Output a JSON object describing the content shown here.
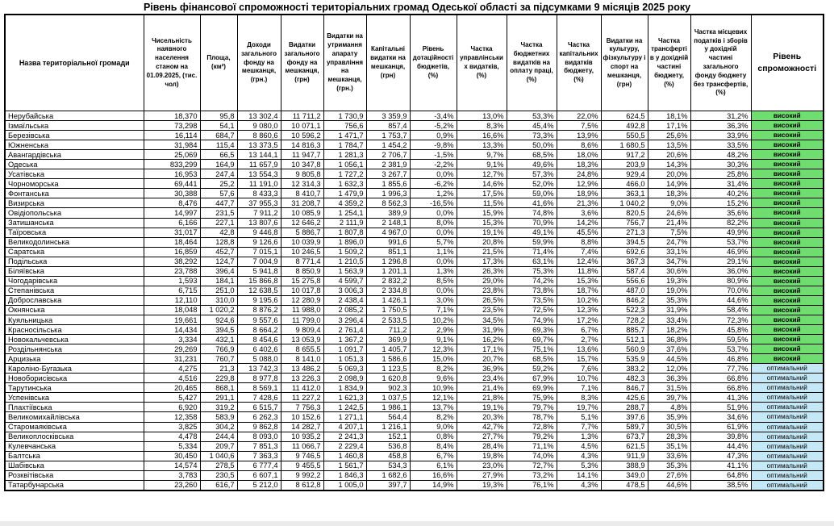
{
  "title": "Рівень фінансової спроможності територіальних громад Одеської області за підсумками 9 місяців 2025 року",
  "table": {
    "columns": [
      "Назва територіальної громади",
      "Чисельність наявного населення станом на 01.09.2025, (тис. чол)",
      "Площа, (км²)",
      "Доходи загального фонду на мешканця, (грн.)",
      "Видатки загального фонду на мешканця, (грн)",
      "Видатки на утримання апарату управління на мешканця, (грн.)",
      "Капітальні видатки на мешканця, (грн)",
      "Рівень дотаційності бюджетів, (%)",
      "Частка управлінських видатків, (%)",
      "Частка бюджетних видатків на оплату праці, (%)",
      "Частка капітальних видатків бюджету, (%)",
      "Видатки на культуру, фізкультуру і спорт на мешканця, (грн)",
      "Частка трансфертів у дохідній частині бюджету, (%)",
      "Частка місцевих податків і зборів у дохідній частині загального фонду бюджету без трансфертів, (%)",
      "Рівень спроможності"
    ],
    "rows": [
      [
        "Нерубайська",
        "18,370",
        "95,8",
        "13 302,4",
        "11 711,2",
        "1 730,9",
        "3 359,9",
        "-3,4%",
        "13,0%",
        "53,3%",
        "22,0%",
        "624,5",
        "18,1%",
        "31,2%",
        "високий"
      ],
      [
        "Ізмаїльська",
        "73,298",
        "54,1",
        "9 080,0",
        "10 071,1",
        "756,6",
        "857,4",
        "-5,2%",
        "8,3%",
        "45,4%",
        "7,5%",
        "492,8",
        "17,1%",
        "36,3%",
        "високий"
      ],
      [
        "Березівська",
        "16,114",
        "684,7",
        "8 860,6",
        "10 596,2",
        "1 471,7",
        "1 753,7",
        "0,9%",
        "16,6%",
        "73,3%",
        "13,9%",
        "550,5",
        "25,6%",
        "33,9%",
        "високий"
      ],
      [
        "Южненська",
        "31,984",
        "115,4",
        "13 373,5",
        "14 816,3",
        "1 784,7",
        "1 454,2",
        "-9,8%",
        "13,3%",
        "50,0%",
        "8,6%",
        "1 680,5",
        "13,5%",
        "33,5%",
        "високий"
      ],
      [
        "Авангардівська",
        "25,069",
        "66,5",
        "13 144,1",
        "11 947,7",
        "1 281,3",
        "2 706,7",
        "-1,5%",
        "9,7%",
        "68,5%",
        "18,0%",
        "917,2",
        "20,6%",
        "48,2%",
        "високий"
      ],
      [
        "Одеська",
        "833,299",
        "164,9",
        "11 657,9",
        "10 347,8",
        "1 056,1",
        "2 381,9",
        "-2,2%",
        "9,1%",
        "49,6%",
        "18,3%",
        "203,9",
        "14,3%",
        "30,3%",
        "високий"
      ],
      [
        "Усатівська",
        "16,953",
        "247,4",
        "13 554,3",
        "9 805,8",
        "1 727,2",
        "3 267,7",
        "0,0%",
        "12,7%",
        "57,3%",
        "24,8%",
        "929,4",
        "20,0%",
        "25,8%",
        "високий"
      ],
      [
        "Чорноморська",
        "69,441",
        "25,2",
        "11 191,0",
        "12 314,3",
        "1 632,3",
        "1 855,6",
        "-6,2%",
        "14,6%",
        "52,0%",
        "12,9%",
        "466,0",
        "14,9%",
        "31,4%",
        "високий"
      ],
      [
        "Фонтанська",
        "30,388",
        "57,6",
        "8 433,3",
        "8 410,7",
        "1 479,9",
        "1 996,3",
        "1,2%",
        "17,5%",
        "59,0%",
        "18,9%",
        "363,1",
        "18,3%",
        "40,2%",
        "високий"
      ],
      [
        "Визирська",
        "8,476",
        "447,7",
        "37 955,3",
        "31 208,7",
        "4 359,2",
        "8 562,3",
        "-16,5%",
        "11,5%",
        "41,6%",
        "21,3%",
        "1 040,2",
        "9,0%",
        "15,2%",
        "високий"
      ],
      [
        "Овідіопольська",
        "14,997",
        "231,5",
        "7 911,2",
        "10 085,9",
        "1 254,1",
        "389,9",
        "0,0%",
        "15,9%",
        "74,8%",
        "3,6%",
        "820,5",
        "24,6%",
        "35,6%",
        "високий"
      ],
      [
        "Затишанська",
        "6,166",
        "227,1",
        "13 807,6",
        "12 646,2",
        "2 111,9",
        "2 148,1",
        "8,0%",
        "15,3%",
        "70,9%",
        "14,2%",
        "756,7",
        "21,4%",
        "82,2%",
        "високий"
      ],
      [
        "Таїровська",
        "31,017",
        "42,8",
        "9 446,8",
        "5 886,7",
        "1 807,8",
        "4 967,0",
        "0,0%",
        "19,1%",
        "49,1%",
        "45,5%",
        "271,3",
        "7,5%",
        "49,9%",
        "високий"
      ],
      [
        "Великодолинська",
        "18,464",
        "128,8",
        "9 126,6",
        "10 039,9",
        "1 896,0",
        "991,6",
        "5,7%",
        "20,8%",
        "59,9%",
        "8,8%",
        "394,5",
        "24,7%",
        "53,7%",
        "високий"
      ],
      [
        "Саратська",
        "16,859",
        "452,7",
        "7 015,1",
        "10 246,5",
        "1 509,2",
        "851,1",
        "1,1%",
        "21,5%",
        "71,4%",
        "7,4%",
        "692,6",
        "33,1%",
        "46,9%",
        "високий"
      ],
      [
        "Подільська",
        "38,292",
        "124,7",
        "7 004,9",
        "8 771,4",
        "1 210,5",
        "1 296,8",
        "0,0%",
        "17,3%",
        "63,1%",
        "12,4%",
        "367,3",
        "34,7%",
        "29,1%",
        "високий"
      ],
      [
        "Біляївська",
        "23,788",
        "396,4",
        "5 941,8",
        "8 850,9",
        "1 563,9",
        "1 201,1",
        "1,3%",
        "26,3%",
        "75,3%",
        "11,8%",
        "587,4",
        "30,6%",
        "36,0%",
        "високий"
      ],
      [
        "Чогодарівська",
        "1,593",
        "184,1",
        "15 866,8",
        "15 275,8",
        "4 599,7",
        "2 832,2",
        "8,5%",
        "29,0%",
        "74,2%",
        "15,3%",
        "556,6",
        "19,3%",
        "80,9%",
        "високий"
      ],
      [
        "Степанівська",
        "6,715",
        "251,0",
        "12 638,5",
        "10 017,8",
        "3 006,3",
        "2 334,8",
        "0,0%",
        "23,8%",
        "73,8%",
        "18,7%",
        "487,0",
        "19,0%",
        "70,0%",
        "високий"
      ],
      [
        "Доброславська",
        "12,110",
        "310,0",
        "9 195,6",
        "12 280,9",
        "2 438,4",
        "1 426,1",
        "3,0%",
        "26,5%",
        "73,5%",
        "10,2%",
        "846,2",
        "35,3%",
        "44,6%",
        "високий"
      ],
      [
        "Окнянська",
        "18,048",
        "1 020,2",
        "8 876,2",
        "11 988,0",
        "2 085,2",
        "1 750,5",
        "7,1%",
        "23,5%",
        "72,5%",
        "12,3%",
        "522,3",
        "31,9%",
        "58,4%",
        "високий"
      ],
      [
        "Куяльницька",
        "19,661",
        "924,6",
        "9 557,6",
        "11 799,0",
        "3 296,4",
        "2 533,5",
        "10,2%",
        "34,5%",
        "74,9%",
        "17,2%",
        "728,2",
        "33,4%",
        "72,3%",
        "високий"
      ],
      [
        "Красносільська",
        "14,434",
        "394,5",
        "8 664,2",
        "9 809,4",
        "2 761,4",
        "711,2",
        "2,9%",
        "31,9%",
        "69,3%",
        "6,7%",
        "885,7",
        "18,2%",
        "45,8%",
        "високий"
      ],
      [
        "Новокальчевська",
        "3,334",
        "432,1",
        "8 454,6",
        "13 053,9",
        "1 367,2",
        "369,9",
        "9,1%",
        "16,2%",
        "69,7%",
        "2,7%",
        "512,1",
        "36,8%",
        "59,5%",
        "високий"
      ],
      [
        "Роздільнянська",
        "29,269",
        "766,9",
        "6 402,6",
        "8 655,5",
        "1 091,7",
        "1 405,7",
        "12,3%",
        "17,1%",
        "75,1%",
        "13,6%",
        "560,9",
        "37,6%",
        "53,7%",
        "високий"
      ],
      [
        "Арцизька",
        "31,231",
        "760,7",
        "5 088,0",
        "8 141,0",
        "1 051,3",
        "1 586,6",
        "15,0%",
        "20,7%",
        "68,5%",
        "15,7%",
        "535,9",
        "44,5%",
        "46,8%",
        "високий"
      ],
      [
        "Кароліно-Бугазька",
        "4,275",
        "21,3",
        "13 742,3",
        "13 486,2",
        "5 069,3",
        "1 123,5",
        "8,2%",
        "36,9%",
        "59,2%",
        "7,6%",
        "383,2",
        "12,0%",
        "77,7%",
        "оптимальний"
      ],
      [
        "Новоборисівська",
        "4,516",
        "229,8",
        "8 977,8",
        "13 226,3",
        "2 098,9",
        "1 620,8",
        "9,6%",
        "23,4%",
        "67,9%",
        "10,7%",
        "482,3",
        "36,3%",
        "66,8%",
        "оптимальний"
      ],
      [
        "Тарутинська",
        "20,465",
        "868,1",
        "8 569,1",
        "11 412,0",
        "1 834,9",
        "902,3",
        "10,9%",
        "21,4%",
        "69,9%",
        "7,1%",
        "846,7",
        "31,5%",
        "66,8%",
        "оптимальний"
      ],
      [
        "Успенівська",
        "5,427",
        "291,1",
        "7 428,6",
        "11 227,2",
        "1 621,3",
        "1 037,5",
        "12,1%",
        "21,8%",
        "75,9%",
        "8,3%",
        "425,6",
        "39,7%",
        "41,3%",
        "оптимальний"
      ],
      [
        "Плахтіївська",
        "6,920",
        "319,2",
        "6 515,7",
        "7 756,3",
        "1 242,5",
        "1 986,1",
        "13,7%",
        "19,1%",
        "79,7%",
        "19,7%",
        "288,7",
        "4,8%",
        "51,9%",
        "оптимальний"
      ],
      [
        "Великомихайлівська",
        "12,358",
        "583,9",
        "6 262,3",
        "10 152,6",
        "1 271,1",
        "564,4",
        "8,2%",
        "20,3%",
        "78,7%",
        "5,1%",
        "397,6",
        "35,9%",
        "34,6%",
        "оптимальний"
      ],
      [
        "Старомаяківська",
        "3,825",
        "304,2",
        "9 862,8",
        "14 282,7",
        "4 207,1",
        "1 216,1",
        "9,0%",
        "42,7%",
        "72,8%",
        "7,7%",
        "589,7",
        "30,5%",
        "61,9%",
        "оптимальний"
      ],
      [
        "Великоплосківська",
        "4,478",
        "244,4",
        "8 093,0",
        "10 935,2",
        "2 241,3",
        "152,1",
        "0,8%",
        "27,7%",
        "79,2%",
        "1,3%",
        "673,7",
        "28,3%",
        "39,8%",
        "оптимальний"
      ],
      [
        "Кулевчанська",
        "5,334",
        "209,7",
        "7 851,3",
        "11 066,7",
        "2 229,4",
        "536,8",
        "8,4%",
        "28,4%",
        "71,1%",
        "4,5%",
        "621,5",
        "35,1%",
        "44,4%",
        "оптимальний"
      ],
      [
        "Балтська",
        "30,450",
        "1 040,6",
        "7 363,3",
        "9 746,5",
        "1 460,8",
        "458,8",
        "6,7%",
        "19,8%",
        "74,0%",
        "4,3%",
        "911,9",
        "33,6%",
        "47,3%",
        "оптимальний"
      ],
      [
        "Шабівська",
        "14,574",
        "278,5",
        "6 777,4",
        "9 455,5",
        "1 561,7",
        "534,3",
        "6,1%",
        "23,0%",
        "72,7%",
        "5,3%",
        "388,9",
        "35,3%",
        "41,1%",
        "оптимальний"
      ],
      [
        "Розквітівська",
        "3,783",
        "230,5",
        "6 607,1",
        "9 992,2",
        "1 846,3",
        "1 682,6",
        "16,6%",
        "27,9%",
        "73,2%",
        "14,1%",
        "349,0",
        "27,6%",
        "64,8%",
        "оптимальний"
      ],
      [
        "Татарбунарська",
        "23,260",
        "616,7",
        "5 212,0",
        "8 612,8",
        "1 005,0",
        "397,7",
        "14,9%",
        "19,3%",
        "76,1%",
        "4,3%",
        "478,5",
        "44,6%",
        "38,5%",
        "оптимальний"
      ]
    ]
  },
  "levels": {
    "high_label": "високий",
    "high_color": "#6FDD6F",
    "optimal_label": "оптимальний",
    "optimal_color": "#C5E8F7"
  }
}
